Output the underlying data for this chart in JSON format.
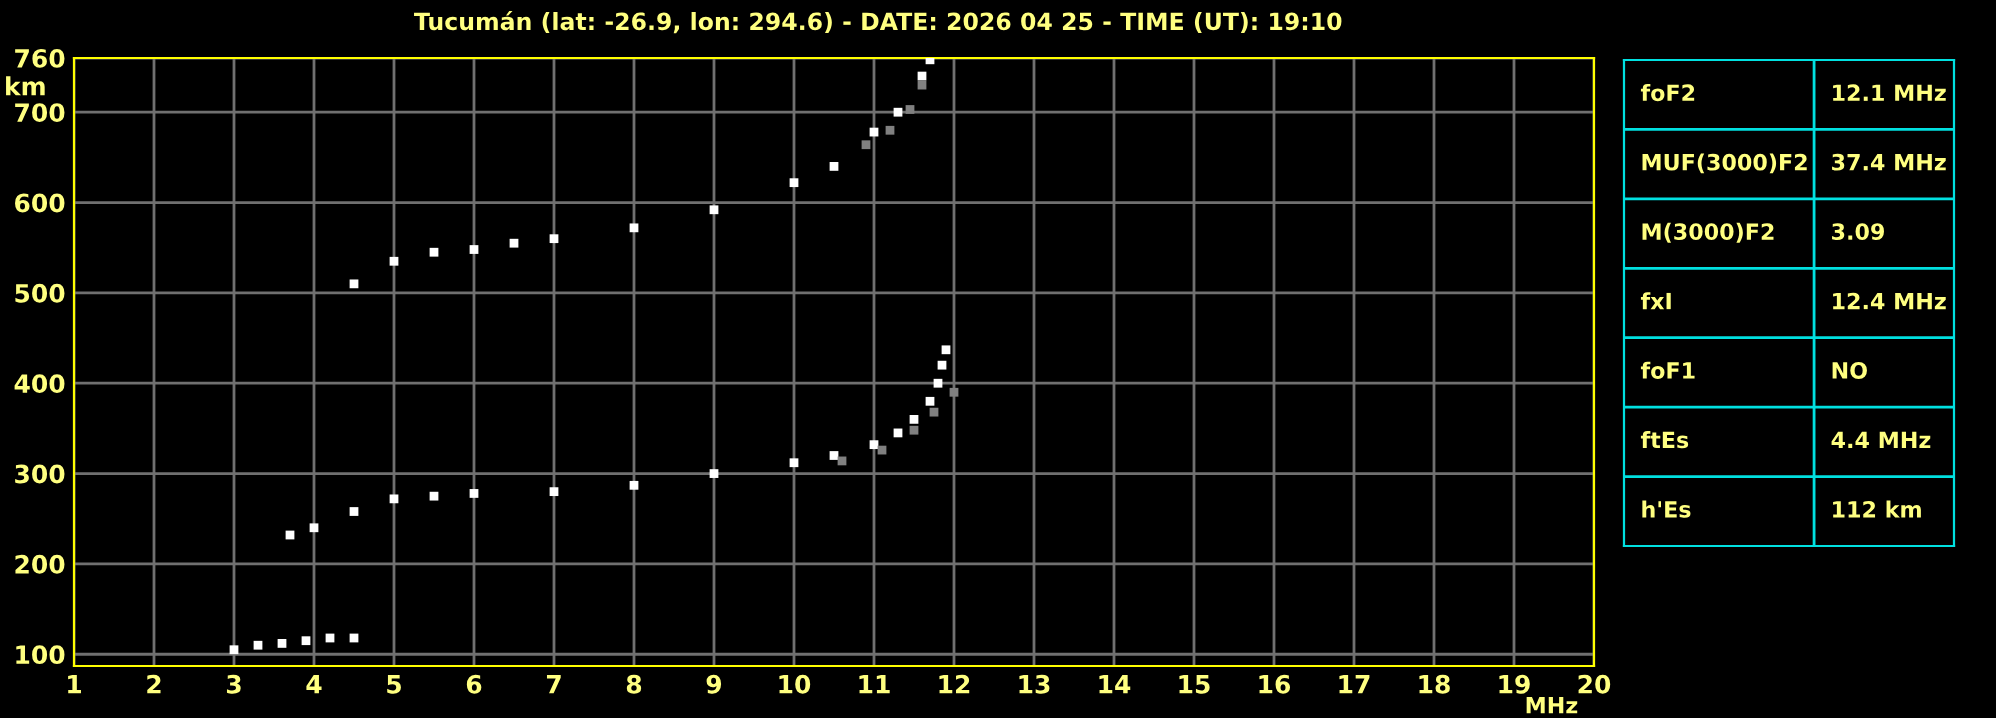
{
  "chart_data": [
    {
      "type": "scatter",
      "title": "Tucumán (lat: -26.9, lon: 294.6) - DATE: 2026 04 25 - TIME (UT): 19:10",
      "xlabel": "MHz",
      "ylabel": "km",
      "xlim": [
        1,
        20
      ],
      "xticks": [
        1,
        2,
        3,
        4,
        5,
        6,
        7,
        8,
        9,
        10,
        11,
        12,
        13,
        14,
        15,
        16,
        17,
        18,
        19,
        20
      ],
      "ylim": [
        87,
        760
      ],
      "yticks": [
        100,
        200,
        300,
        400,
        500,
        600,
        700,
        760
      ],
      "grid": true,
      "marker": "square",
      "series": [
        {
          "color": "#ffffff",
          "x": [
            3.7,
            4.0,
            4.5,
            5.0,
            5.5,
            6.0,
            7.0,
            8.0,
            9.0,
            10.0,
            10.5,
            11.0,
            11.3,
            11.5,
            11.7,
            11.8,
            11.85,
            11.9
          ],
          "values": [
            232,
            240,
            258,
            272,
            275,
            278,
            280,
            287,
            300,
            312,
            320,
            332,
            345,
            360,
            380,
            400,
            420,
            437
          ]
        },
        {
          "color": "#ffffff",
          "x": [
            4.5,
            5.0,
            5.5,
            6.0,
            6.5,
            7.0,
            8.0,
            9.0,
            10.0,
            10.5,
            11.0,
            11.3,
            11.6,
            11.7
          ],
          "values": [
            510,
            535,
            545,
            548,
            555,
            560,
            572,
            592,
            622,
            640,
            678,
            700,
            740,
            758
          ]
        },
        {
          "color": "#ffffff",
          "x": [
            3.0,
            3.3,
            3.6,
            3.9,
            4.2,
            4.5
          ],
          "values": [
            105,
            110,
            112,
            115,
            118,
            118
          ]
        },
        {
          "color": "#808080",
          "x": [
            10.6,
            11.1,
            11.5,
            11.75,
            12.0
          ],
          "values": [
            314,
            326,
            348,
            368,
            390
          ]
        },
        {
          "color": "#808080",
          "x": [
            10.9,
            11.2,
            11.45,
            11.6
          ],
          "values": [
            664,
            680,
            703,
            730
          ]
        }
      ]
    },
    {
      "type": "other",
      "annotations": [
        "foF2",
        "12.1 MHz",
        "MUF(3000)F2",
        "37.4 MHz",
        "M(3000)F2",
        "3.09",
        "fxI",
        "12.4 MHz",
        "foF1",
        "NO",
        "ftEs",
        "4.4 MHz",
        "h'Es",
        "112 km"
      ]
    }
  ]
}
